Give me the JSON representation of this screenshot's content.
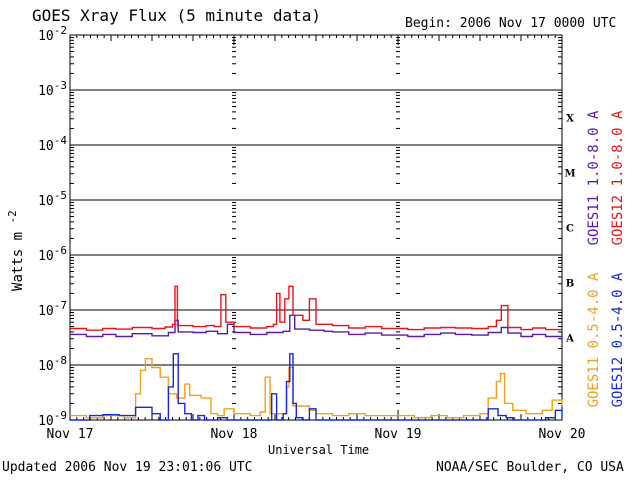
{
  "header": {
    "title": "GOES Xray Flux (5 minute data)",
    "begin": "Begin:  2006 Nov 17 0000 UTC"
  },
  "footer": {
    "updated": "Updated 2006 Nov 19 23:01:06 UTC",
    "credit": "NOAA/SEC Boulder, CO USA"
  },
  "chart_data": {
    "type": "line",
    "title": "GOES Xray Flux (5 minute data)",
    "xlabel": "Universal Time",
    "ylabel": "Watts m",
    "ylabel_exp": "-2",
    "yscale": "log",
    "ylim": [
      1e-09,
      0.01
    ],
    "xlim": [
      0,
      3
    ],
    "x_unit": "days since 2006 Nov 17 0000 UTC",
    "x_ticks": [
      {
        "x": 0,
        "label": "Nov 17"
      },
      {
        "x": 1,
        "label": "Nov 18"
      },
      {
        "x": 2,
        "label": "Nov 19"
      },
      {
        "x": 3,
        "label": "Nov 20"
      }
    ],
    "y_ticks": [
      {
        "exp": -2,
        "base": "10",
        "sup": "-2"
      },
      {
        "exp": -3,
        "base": "10",
        "sup": "-3"
      },
      {
        "exp": -4,
        "base": "10",
        "sup": "-4"
      },
      {
        "exp": -5,
        "base": "10",
        "sup": "-5"
      },
      {
        "exp": -6,
        "base": "10",
        "sup": "-6"
      },
      {
        "exp": -7,
        "base": "10",
        "sup": "-7"
      },
      {
        "exp": -8,
        "base": "10",
        "sup": "-8"
      },
      {
        "exp": -9,
        "base": "10",
        "sup": "-9"
      }
    ],
    "flare_classes": [
      {
        "label": "X",
        "exp": -4
      },
      {
        "label": "M",
        "exp": -5
      },
      {
        "label": "C",
        "exp": -6
      },
      {
        "label": "B",
        "exp": -7
      },
      {
        "label": "A",
        "exp": -8
      }
    ],
    "legend_placement": "right",
    "series": [
      {
        "name": "GOES11 1.0-8.0 A",
        "color": "#5a1aa8",
        "points": [
          [
            0.0,
            3.6e-08
          ],
          [
            0.1,
            3.3e-08
          ],
          [
            0.2,
            3.6e-08
          ],
          [
            0.28,
            3.3e-08
          ],
          [
            0.38,
            3.7e-08
          ],
          [
            0.5,
            3.4e-08
          ],
          [
            0.6,
            3.9e-08
          ],
          [
            0.64,
            6.5e-08
          ],
          [
            0.66,
            4e-08
          ],
          [
            0.75,
            3.9e-08
          ],
          [
            0.83,
            4.1e-08
          ],
          [
            0.9,
            3.7e-08
          ],
          [
            0.96,
            5.5e-08
          ],
          [
            1.0,
            3.9e-08
          ],
          [
            1.1,
            3.6e-08
          ],
          [
            1.2,
            3.9e-08
          ],
          [
            1.3,
            4.1e-08
          ],
          [
            1.34,
            8e-08
          ],
          [
            1.37,
            4.5e-08
          ],
          [
            1.46,
            4.3e-08
          ],
          [
            1.55,
            4.1e-08
          ],
          [
            1.6,
            4e-08
          ],
          [
            1.7,
            3.6e-08
          ],
          [
            1.8,
            3.8e-08
          ],
          [
            1.9,
            3.5e-08
          ],
          [
            1.98,
            3.5e-08
          ],
          [
            2.06,
            3.3e-08
          ],
          [
            2.16,
            3.6e-08
          ],
          [
            2.26,
            3.8e-08
          ],
          [
            2.35,
            3.6e-08
          ],
          [
            2.45,
            3.5e-08
          ],
          [
            2.55,
            3.9e-08
          ],
          [
            2.63,
            4.8e-08
          ],
          [
            2.67,
            3.8e-08
          ],
          [
            2.75,
            3.3e-08
          ],
          [
            2.82,
            3.6e-08
          ],
          [
            2.9,
            3.3e-08
          ],
          [
            3.0,
            3.4e-08
          ]
        ]
      },
      {
        "name": "GOES12 1.0-8.0 A",
        "color": "#e8141c",
        "points": [
          [
            0.0,
            4.6e-08
          ],
          [
            0.1,
            4.3e-08
          ],
          [
            0.2,
            4.6e-08
          ],
          [
            0.28,
            4.5e-08
          ],
          [
            0.38,
            4.8e-08
          ],
          [
            0.5,
            4.6e-08
          ],
          [
            0.58,
            4.9e-08
          ],
          [
            0.625,
            5.5e-08
          ],
          [
            0.64,
            2.7e-07
          ],
          [
            0.655,
            5.2e-08
          ],
          [
            0.75,
            5e-08
          ],
          [
            0.83,
            5.2e-08
          ],
          [
            0.88,
            5e-08
          ],
          [
            0.92,
            1.9e-07
          ],
          [
            0.95,
            6e-08
          ],
          [
            1.0,
            5e-08
          ],
          [
            1.1,
            4.7e-08
          ],
          [
            1.2,
            5e-08
          ],
          [
            1.24,
            5.5e-08
          ],
          [
            1.26,
            2e-07
          ],
          [
            1.28,
            6e-08
          ],
          [
            1.31,
            1.6e-07
          ],
          [
            1.335,
            2.7e-07
          ],
          [
            1.36,
            8e-08
          ],
          [
            1.42,
            6.5e-08
          ],
          [
            1.46,
            1.6e-07
          ],
          [
            1.5,
            5.5e-08
          ],
          [
            1.6,
            5.2e-08
          ],
          [
            1.7,
            4.7e-08
          ],
          [
            1.8,
            5e-08
          ],
          [
            1.9,
            4.6e-08
          ],
          [
            1.98,
            4.6e-08
          ],
          [
            2.06,
            4.4e-08
          ],
          [
            2.16,
            4.7e-08
          ],
          [
            2.26,
            4.8e-08
          ],
          [
            2.35,
            4.7e-08
          ],
          [
            2.45,
            4.6e-08
          ],
          [
            2.55,
            5e-08
          ],
          [
            2.6,
            6.5e-08
          ],
          [
            2.63,
            1.2e-07
          ],
          [
            2.67,
            4.8e-08
          ],
          [
            2.75,
            4.4e-08
          ],
          [
            2.82,
            4.7e-08
          ],
          [
            2.9,
            4.4e-08
          ],
          [
            3.0,
            4.5e-08
          ]
        ]
      },
      {
        "name": "GOES11 0.5-4.0 A",
        "color": "#f0a01e",
        "points": [
          [
            0.0,
            1.2e-09
          ],
          [
            0.1,
            1.1e-09
          ],
          [
            0.2,
            1.2e-09
          ],
          [
            0.33,
            1.1e-09
          ],
          [
            0.4,
            3e-09
          ],
          [
            0.43,
            8e-09
          ],
          [
            0.46,
            1.3e-08
          ],
          [
            0.5,
            9e-09
          ],
          [
            0.55,
            6e-09
          ],
          [
            0.6,
            3e-09
          ],
          [
            0.65,
            2.5e-09
          ],
          [
            0.7,
            4.5e-09
          ],
          [
            0.73,
            2.8e-09
          ],
          [
            0.8,
            2.5e-09
          ],
          [
            0.86,
            1.3e-09
          ],
          [
            0.9,
            1.2e-09
          ],
          [
            0.94,
            1.6e-09
          ],
          [
            1.0,
            1.3e-09
          ],
          [
            1.1,
            1.2e-09
          ],
          [
            1.16,
            1.4e-09
          ],
          [
            1.19,
            6e-09
          ],
          [
            1.22,
            1.3e-09
          ],
          [
            1.3,
            1.3e-09
          ],
          [
            1.32,
            4e-09
          ],
          [
            1.335,
            9e-09
          ],
          [
            1.36,
            1.8e-09
          ],
          [
            1.46,
            1.5e-09
          ],
          [
            1.5,
            1.3e-09
          ],
          [
            1.6,
            1.2e-09
          ],
          [
            1.7,
            1.3e-09
          ],
          [
            1.8,
            1.2e-09
          ],
          [
            1.9,
            1.2e-09
          ],
          [
            2.0,
            1.2e-09
          ],
          [
            2.1,
            1.1e-09
          ],
          [
            2.2,
            1.2e-09
          ],
          [
            2.3,
            1.1e-09
          ],
          [
            2.4,
            1.2e-09
          ],
          [
            2.5,
            1.3e-09
          ],
          [
            2.55,
            2.5e-09
          ],
          [
            2.6,
            5e-09
          ],
          [
            2.625,
            7e-09
          ],
          [
            2.65,
            2e-09
          ],
          [
            2.7,
            1.5e-09
          ],
          [
            2.78,
            1.3e-09
          ],
          [
            2.88,
            1.5e-09
          ],
          [
            2.94,
            2.3e-09
          ],
          [
            3.0,
            1.8e-09
          ]
        ]
      },
      {
        "name": "GOES12 0.5-4.0 A",
        "color": "#1428e0",
        "points": [
          [
            0.0,
            1e-09
          ],
          [
            0.08,
            1e-09
          ],
          [
            0.12,
            1.2e-09
          ],
          [
            0.2,
            1.25e-09
          ],
          [
            0.3,
            1.2e-09
          ],
          [
            0.37,
            1.2e-09
          ],
          [
            0.4,
            1.7e-09
          ],
          [
            0.48,
            1.7e-09
          ],
          [
            0.5,
            1.3e-09
          ],
          [
            0.55,
            1e-09
          ],
          [
            0.6,
            4e-09
          ],
          [
            0.63,
            1.6e-08
          ],
          [
            0.66,
            2e-09
          ],
          [
            0.7,
            1.3e-09
          ],
          [
            0.74,
            1e-09
          ],
          [
            0.78,
            1.2e-09
          ],
          [
            0.82,
            1e-09
          ],
          [
            0.9,
            1.1e-09
          ],
          [
            0.96,
            1e-09
          ],
          [
            1.0,
            1e-09
          ],
          [
            1.2,
            1e-09
          ],
          [
            1.23,
            3e-09
          ],
          [
            1.26,
            1e-09
          ],
          [
            1.3,
            1.3e-09
          ],
          [
            1.32,
            5e-09
          ],
          [
            1.34,
            1.6e-08
          ],
          [
            1.36,
            2e-09
          ],
          [
            1.38,
            1.1e-09
          ],
          [
            1.42,
            1e-09
          ],
          [
            1.46,
            1.6e-09
          ],
          [
            1.5,
            1e-09
          ],
          [
            1.6,
            1e-09
          ],
          [
            1.8,
            1e-09
          ],
          [
            2.0,
            1e-09
          ],
          [
            2.06,
            1e-09
          ],
          [
            2.3,
            1e-09
          ],
          [
            2.5,
            1e-09
          ],
          [
            2.55,
            1.6e-09
          ],
          [
            2.59,
            1.6e-09
          ],
          [
            2.61,
            1.2e-09
          ],
          [
            2.66,
            1.1e-09
          ],
          [
            2.7,
            1e-09
          ],
          [
            2.8,
            1e-09
          ],
          [
            2.9,
            1.1e-09
          ],
          [
            2.96,
            1.5e-09
          ],
          [
            3.0,
            1.1e-09
          ]
        ]
      }
    ]
  }
}
